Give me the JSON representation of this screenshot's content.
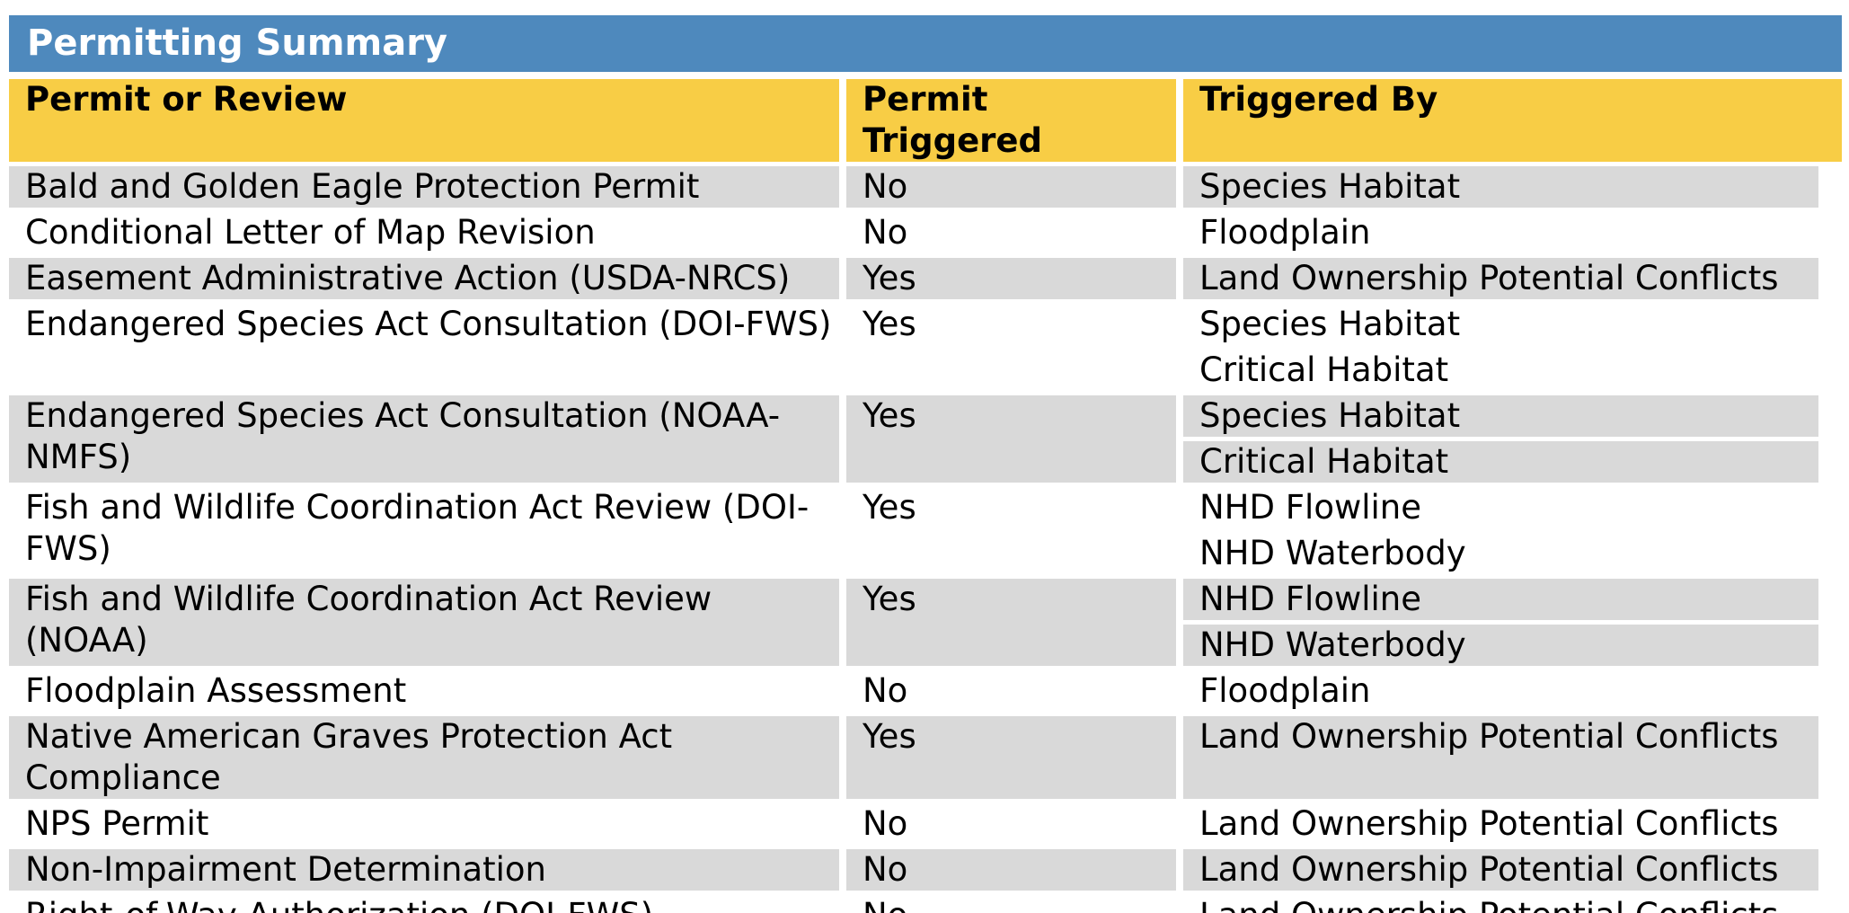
{
  "title": "Permitting Summary",
  "columns": {
    "permit": "Permit or Review",
    "triggered": "Permit Triggered",
    "by": "Triggered By"
  },
  "rows": [
    {
      "permit": "Bald and Golden Eagle Protection Permit",
      "triggered": "No",
      "by": [
        "Species Habitat"
      ]
    },
    {
      "permit": "Conditional Letter of Map Revision",
      "triggered": "No",
      "by": [
        "Floodplain"
      ]
    },
    {
      "permit": "Easement Administrative Action (USDA-NRCS)",
      "triggered": "Yes",
      "by": [
        "Land Ownership Potential Conflicts"
      ]
    },
    {
      "permit": "Endangered Species Act Consultation (DOI-FWS)",
      "triggered": "Yes",
      "by": [
        "Species Habitat",
        "Critical Habitat"
      ]
    },
    {
      "permit": "Endangered Species Act Consultation (NOAA-NMFS)",
      "triggered": "Yes",
      "by": [
        "Species Habitat",
        "Critical Habitat"
      ]
    },
    {
      "permit": "Fish and Wildlife Coordination Act Review (DOI-FWS)",
      "triggered": "Yes",
      "by": [
        "NHD Flowline",
        "NHD Waterbody"
      ]
    },
    {
      "permit": "Fish and Wildlife Coordination Act Review (NOAA)",
      "triggered": "Yes",
      "by": [
        "NHD Flowline",
        "NHD Waterbody"
      ]
    },
    {
      "permit": "Floodplain Assessment",
      "triggered": "No",
      "by": [
        "Floodplain"
      ]
    },
    {
      "permit": "Native American Graves Protection Act Compliance",
      "triggered": "Yes",
      "by": [
        "Land Ownership Potential Conflicts"
      ]
    },
    {
      "permit": "NPS Permit",
      "triggered": "No",
      "by": [
        "Land Ownership Potential Conflicts"
      ]
    },
    {
      "permit": "Non-Impairment Determination",
      "triggered": "No",
      "by": [
        "Land Ownership Potential Conflicts"
      ]
    },
    {
      "permit": "Right-of-Way Authorization (DOI-FWS)",
      "triggered": "No",
      "by": [
        "Land Ownership Potential Conflicts"
      ]
    }
  ]
}
